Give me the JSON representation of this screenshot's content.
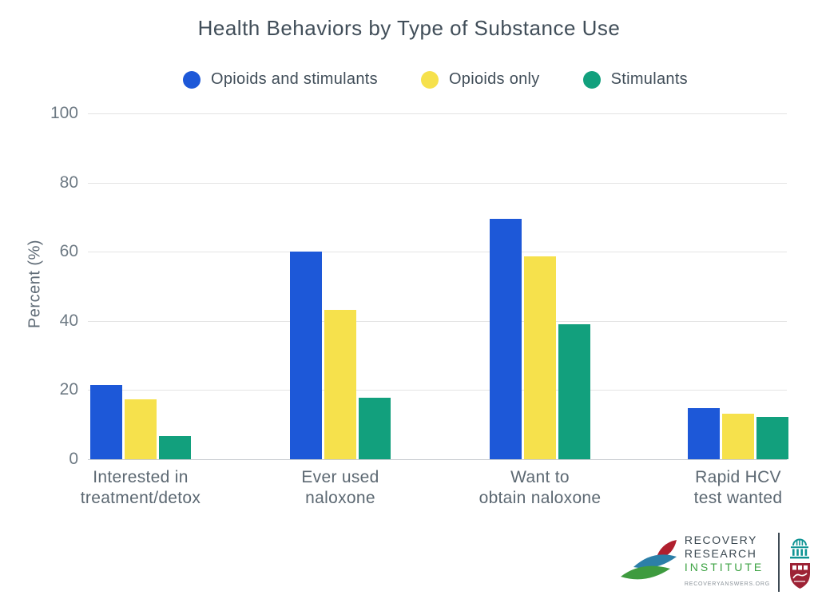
{
  "chart_data": {
    "type": "bar",
    "title": "Health Behaviors by Type of Substance Use",
    "ylabel": "Percent (%)",
    "ylim": [
      0,
      100
    ],
    "yticks": [
      0,
      20,
      40,
      60,
      80,
      100
    ],
    "grid": "horizontal",
    "legend_position": "top",
    "categories": [
      [
        "Interested in",
        "treatment/detox"
      ],
      [
        "Ever used",
        "naloxone"
      ],
      [
        "Want to",
        "obtain naloxone"
      ],
      [
        "Rapid HCV",
        "test wanted"
      ]
    ],
    "series": [
      {
        "name": "Opioids and stimulants",
        "color": "#1d58d8",
        "values": [
          21.5,
          60.0,
          69.6,
          14.9
        ]
      },
      {
        "name": "Opioids only",
        "color": "#f6e14c",
        "values": [
          17.4,
          43.3,
          58.7,
          13.2
        ]
      },
      {
        "name": "Stimulants",
        "color": "#12a07d",
        "values": [
          6.8,
          17.8,
          39.1,
          12.3
        ]
      }
    ]
  },
  "footer_logo": {
    "line1": "RECOVERY",
    "line2": "RESEARCH",
    "line3": "INSTITUTE",
    "url": "RECOVERYANSWERS.ORG",
    "colors": {
      "text": "#3a4750",
      "institute_green": "#3ea344",
      "leaf_green": "#3e9b3f",
      "leaf_blue": "#2c7fa8",
      "leaf_red": "#b01f2e",
      "mgh_teal": "#0f9494",
      "shield_red": "#9d2235"
    }
  }
}
